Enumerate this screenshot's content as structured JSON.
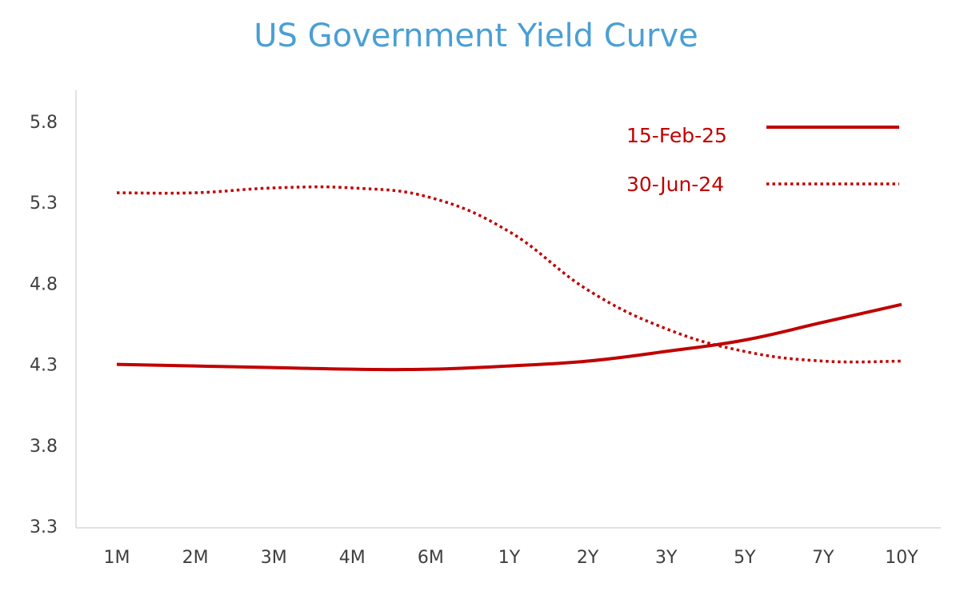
{
  "chart_data": {
    "type": "line",
    "title": "US Government Yield Curve",
    "xlabel": "",
    "ylabel": "",
    "categories": [
      "1M",
      "2M",
      "3M",
      "4M",
      "6M",
      "1Y",
      "2Y",
      "3Y",
      "5Y",
      "7Y",
      "10Y"
    ],
    "ylim": [
      3.3,
      5.8
    ],
    "yticks": [
      "3.3",
      "3.8",
      "4.3",
      "4.8",
      "5.3",
      "5.8"
    ],
    "grid": false,
    "legend_position": "top-right",
    "series": [
      {
        "name": "15-Feb-25",
        "style": "solid",
        "color": "#c00000",
        "values": [
          4.3,
          4.29,
          4.28,
          4.27,
          4.27,
          4.29,
          4.32,
          4.38,
          4.45,
          4.56,
          4.67
        ]
      },
      {
        "name": "30-Jun-24",
        "style": "dotted",
        "color": "#c00000",
        "values": [
          5.36,
          5.36,
          5.39,
          5.39,
          5.33,
          5.12,
          4.76,
          4.52,
          4.38,
          4.32,
          4.32
        ]
      }
    ],
    "colors": {
      "title": "#4a9fd5",
      "axis": "#d9d9d9",
      "series": "#c00000"
    }
  }
}
